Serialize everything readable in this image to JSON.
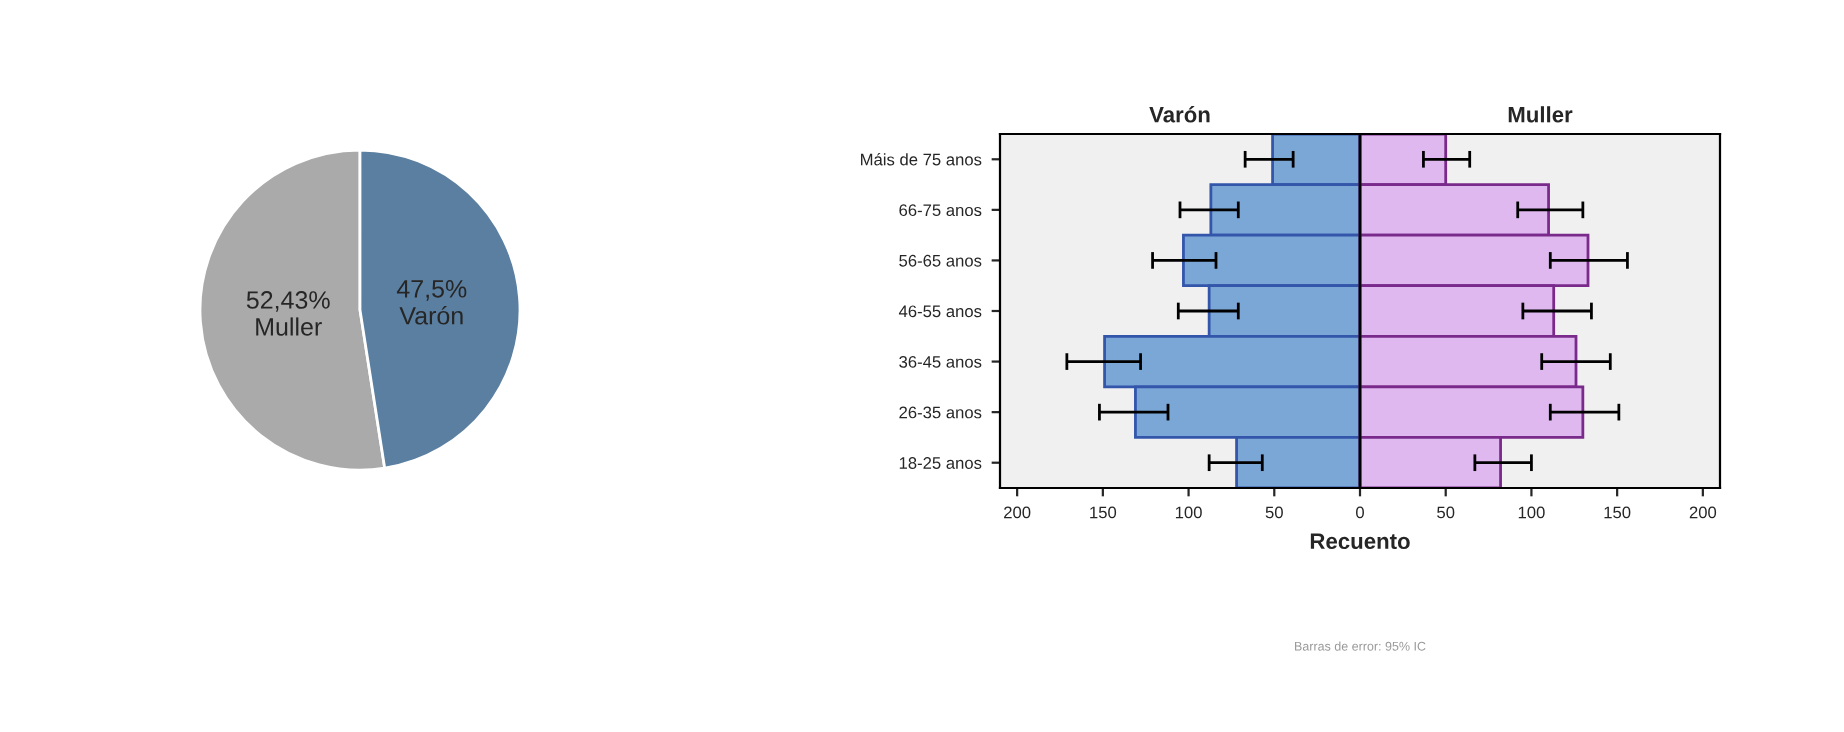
{
  "chart_data": [
    {
      "type": "pie",
      "categories": [
        "Muller",
        "Varón"
      ],
      "values": [
        52.43,
        47.5
      ],
      "colors": [
        "#aaaaaa",
        "#5b7fa0"
      ],
      "value_labels": [
        "52,43%",
        "47,5%"
      ]
    },
    {
      "type": "bar",
      "orientation": "horizontal",
      "stacked": true,
      "xlabel": "Recuento",
      "categories": [
        "Máis de 75 anos",
        "66-75 anos",
        "56-65 anos",
        "46-55 anos",
        "36-45 anos",
        "26-35 anos",
        "18-25 anos"
      ],
      "series": [
        {
          "name": "Varón",
          "color": "#7ba7d6",
          "values": [
            -51,
            -87,
            -103,
            -88,
            -149,
            -131,
            -72
          ],
          "errors": [
            [
              -67,
              -39
            ],
            [
              -105,
              -71
            ],
            [
              -121,
              -84
            ],
            [
              -106,
              -71
            ],
            [
              -171,
              -128
            ],
            [
              -152,
              -112
            ],
            [
              -88,
              -57
            ]
          ]
        },
        {
          "name": "Muller",
          "color": "#dfb8f0",
          "values": [
            50,
            110,
            133,
            113,
            126,
            130,
            82
          ],
          "errors": [
            [
              37,
              64
            ],
            [
              92,
              130
            ],
            [
              111,
              156
            ],
            [
              95,
              135
            ],
            [
              106,
              146
            ],
            [
              111,
              151
            ],
            [
              67,
              100
            ]
          ]
        }
      ],
      "xlim": [
        -210,
        210
      ],
      "xticks": [
        {
          "value": -200,
          "label": "200"
        },
        {
          "value": -150,
          "label": "150"
        },
        {
          "value": -100,
          "label": "100"
        },
        {
          "value": -50,
          "label": "50"
        },
        0,
        50,
        100,
        150,
        200
      ],
      "ref_lines": [
        {
          "axis": "x",
          "value": 0,
          "color": "#000000"
        }
      ],
      "annotations": [
        "Barras de error: 95% IC"
      ]
    }
  ]
}
